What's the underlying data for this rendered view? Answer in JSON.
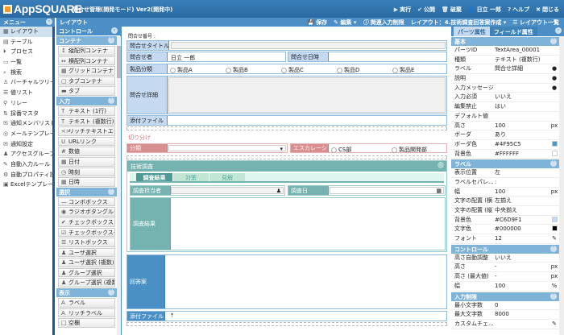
{
  "header": {
    "logo": "AppSQUARE",
    "title": "問合せ管理(開発モード)  Ver2(開発中)",
    "buttons": [
      {
        "icon": "play-icon",
        "g": "▶",
        "label": "実行"
      },
      {
        "icon": "publish-icon",
        "g": "✔",
        "label": "公開"
      },
      {
        "icon": "trash-icon",
        "g": "🗑",
        "label": "破棄"
      },
      {
        "icon": "user-icon",
        "g": "👤",
        "label": "日立 一郎"
      },
      {
        "icon": "help-icon",
        "g": "?",
        "label": "ヘルプ"
      },
      {
        "icon": "close-icon",
        "g": "✖",
        "label": "閉じる"
      }
    ]
  },
  "layout_bar": {
    "title": "レイアウト",
    "tools": [
      {
        "icon": "save-icon",
        "g": "💾",
        "label": "保存"
      },
      {
        "icon": "edit-icon",
        "g": "✎",
        "label": "編集 ▾"
      },
      {
        "icon": "info-icon",
        "g": "ⓘ",
        "label": "関連入力制限"
      },
      {
        "icon": "",
        "g": "",
        "label": "レイアウト：4.技術調査回答案作成 ▾"
      },
      {
        "icon": "list-icon",
        "g": "☰",
        "label": "レイアウト一覧"
      }
    ]
  },
  "menu": {
    "title": "メニュー",
    "items": [
      {
        "g": "▦",
        "label": "レイアウト",
        "selected": true
      },
      {
        "g": "▤",
        "label": "テーブル"
      },
      {
        "g": "⏵",
        "label": "プロセス"
      },
      {
        "g": "▭",
        "label": "一覧"
      },
      {
        "g": "⌕",
        "label": "検索"
      },
      {
        "g": "♙",
        "label": "バーチャルツリー"
      },
      {
        "g": "☰",
        "label": "値リスト"
      },
      {
        "g": "⚲",
        "label": "リレー"
      },
      {
        "g": "⇅",
        "label": "採番マスタ"
      },
      {
        "g": "✉",
        "label": "通知メンバリスト"
      },
      {
        "g": "◎",
        "label": "メールテンプレート"
      },
      {
        "g": "✉",
        "label": "通知設定"
      },
      {
        "g": "♟",
        "label": "アクセスグループ"
      },
      {
        "g": "✎",
        "label": "自動入力ルール"
      },
      {
        "g": "⚙",
        "label": "自動プロパティ設定"
      },
      {
        "g": "▣",
        "label": "Excelテンプレート"
      }
    ]
  },
  "controls": {
    "title": "コントロール",
    "sections": [
      {
        "title": "コンテナ",
        "items": [
          {
            "g": "↕",
            "label": "縦配列コンテナ"
          },
          {
            "g": "↔",
            "label": "横配列コンテナ"
          },
          {
            "g": "▦",
            "label": "グリッドコンテナ"
          },
          {
            "g": "▢",
            "label": "タブコンテナ"
          },
          {
            "g": "▬",
            "label": "タブ"
          }
        ]
      },
      {
        "title": "入力",
        "items": [
          {
            "g": "T",
            "label": "テキスト (1行)"
          },
          {
            "g": "T",
            "label": "テキスト (複数行)"
          },
          {
            "g": "<>",
            "label": "リッチテキストエディタ"
          },
          {
            "g": "U",
            "label": "URLリンク"
          },
          {
            "g": "#",
            "label": "数値"
          },
          {
            "g": "▦",
            "label": "日付"
          },
          {
            "g": "◷",
            "label": "時刻"
          },
          {
            "g": "▦",
            "label": "日時"
          }
        ]
      },
      {
        "title": "選択",
        "items": [
          {
            "g": "—",
            "label": "コンボボックス"
          },
          {
            "g": "◉",
            "label": "ラジオボタングループ"
          },
          {
            "g": "✔",
            "label": "チェックボックス"
          },
          {
            "g": "☑",
            "label": "チェックボックスグ..."
          },
          {
            "g": "☰",
            "label": "リストボックス"
          },
          {
            "g": "♟",
            "label": "ユーザ選択"
          },
          {
            "g": "♟",
            "label": "ユーザ選択 (複数)"
          },
          {
            "g": "♟",
            "label": "グループ選択"
          },
          {
            "g": "♟",
            "label": "グループ選択 (複数)"
          }
        ]
      },
      {
        "title": "表示",
        "items": [
          {
            "g": "A",
            "label": "ラベル"
          },
          {
            "g": "A",
            "label": "リッチラベル"
          },
          {
            "g": "□",
            "label": "空欄"
          }
        ]
      }
    ]
  },
  "form": {
    "number_label": "問合せ番号 :",
    "title_label": "問合せタイトル",
    "requester_label": "問合せ者",
    "requester_value": "日立 一郎",
    "datetime_label": "問合せ日時",
    "product_label": "製品分類",
    "products": [
      "製品A",
      "製品B",
      "製品C",
      "製品D",
      "製品E"
    ],
    "detail_label": "問合せ詳細",
    "attach_label": "添付ファイル",
    "triage_title": "切り分け",
    "category_label": "分類",
    "escalation_label": "エスカレーショ...",
    "escalation_options": [
      "CS部",
      "製品開発部"
    ],
    "tech_title": "技術調査",
    "tabs": [
      "調査結果",
      "対策",
      "見解"
    ],
    "investigator_label": "調査担当者",
    "investigation_date_label": "調査日",
    "result_label": "調査結果",
    "answer_label": "回答案",
    "attach2_label": "添付ファイル"
  },
  "props": {
    "tabs": [
      "パーツ属性",
      "フィールド属性"
    ],
    "sections": [
      {
        "title": "基本",
        "rows": [
          {
            "k": "パーツID",
            "v": "TextArea_00001"
          },
          {
            "k": "種類",
            "v": "テキスト (複数行)"
          },
          {
            "k": "ラベル",
            "v": "問合せ詳細",
            "x": "●"
          },
          {
            "k": "説明",
            "v": "",
            "x": "●"
          },
          {
            "k": "入力メッセージ",
            "v": "",
            "x": "●"
          },
          {
            "k": "入力必須",
            "v": "いいえ"
          },
          {
            "k": "編集禁止",
            "v": "はい"
          },
          {
            "k": "デフォルト値",
            "v": ""
          },
          {
            "k": "高さ",
            "v": "100",
            "x": "px"
          },
          {
            "k": "ボーダ",
            "v": "あり"
          },
          {
            "k": "ボーダ色",
            "v": "#4F95C5",
            "sw": "#4F95C5"
          },
          {
            "k": "背景色",
            "v": "#FFFFFF",
            "sw": "#FFFFFF"
          }
        ]
      },
      {
        "title": "ラベル",
        "rows": [
          {
            "k": "表示位置",
            "v": "左"
          },
          {
            "k": "ラベルセパレ...",
            "v": ":"
          },
          {
            "k": "幅",
            "v": "100",
            "x": "px"
          },
          {
            "k": "文字の配置 (横)",
            "v": "左揃え"
          },
          {
            "k": "文字の配置 (縦)",
            "v": "中央揃え"
          },
          {
            "k": "背景色",
            "v": "#C6D9F1",
            "sw": "#C6D9F1"
          },
          {
            "k": "文字色",
            "v": "#000000",
            "sw": "#000000"
          },
          {
            "k": "フォント",
            "v": "12",
            "x": "✎"
          }
        ]
      },
      {
        "title": "コントロール",
        "rows": [
          {
            "k": "高さ自動調整",
            "v": "いいえ"
          },
          {
            "k": "高さ",
            "v": "-",
            "x": "px"
          },
          {
            "k": "高さ (最大値)",
            "v": "-",
            "x": "px"
          },
          {
            "k": "幅",
            "v": "100",
            "x": "%"
          }
        ]
      },
      {
        "title": "入力制限",
        "rows": [
          {
            "k": "最小文字数",
            "v": "0"
          },
          {
            "k": "最大文字数",
            "v": "8000"
          },
          {
            "k": "カスタムチェ...",
            "v": "",
            "x": "✎"
          }
        ]
      }
    ]
  }
}
